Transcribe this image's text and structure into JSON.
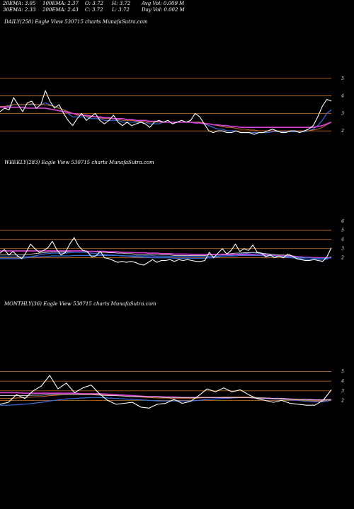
{
  "stats": {
    "ema20": "20EMA: 3.05",
    "ema30": "30EMA: 2.33",
    "ema100": "100EMA: 2.37",
    "ema200": "200EMA: 2.43",
    "open": "O: 3.72",
    "close": "C: 3.72",
    "high": "H: 3.72",
    "low": "L: 3.72",
    "avg_vol": "Avg Vol: 0.009 M",
    "day_vol": "Day Vol: 0.002  M"
  },
  "colors": {
    "background": "#000000",
    "price": "#ffffff",
    "level_line": "#b5651d",
    "ema_blue": "#3a6fe0",
    "ema_magenta": "#e040e0",
    "ema_orange": "#c87030",
    "ema_white": "#d8d8d8"
  },
  "chart_data": [
    {
      "type": "line",
      "title": "DAILY(250) Eagle   View  530715 charts MunafaSutra.com",
      "ylim": [
        1.4,
        5.6
      ],
      "yticks": [
        5,
        4,
        3,
        2
      ],
      "levels": [
        5,
        4,
        3,
        2
      ],
      "series": [
        {
          "role": "price",
          "values": [
            3.1,
            3.3,
            3.2,
            3.9,
            3.5,
            3.1,
            3.6,
            3.7,
            3.3,
            3.5,
            4.3,
            3.7,
            3.3,
            3.5,
            3.0,
            2.6,
            2.3,
            2.7,
            3.0,
            2.6,
            2.8,
            3.0,
            2.6,
            2.4,
            2.6,
            2.9,
            2.5,
            2.3,
            2.5,
            2.3,
            2.4,
            2.5,
            2.4,
            2.2,
            2.5,
            2.6,
            2.5,
            2.6,
            2.4,
            2.5,
            2.6,
            2.5,
            2.6,
            3.0,
            2.8,
            2.4,
            2.0,
            1.9,
            2.0,
            2.0,
            1.9,
            1.9,
            2.0,
            1.9,
            1.9,
            1.9,
            1.8,
            1.9,
            1.9,
            2.0,
            2.1,
            2.0,
            1.9,
            1.9,
            2.0,
            2.0,
            1.9,
            2.0,
            2.1,
            2.3,
            2.8,
            3.4,
            3.8,
            3.7
          ]
        },
        {
          "role": "ema-blue",
          "values": [
            3.4,
            3.4,
            3.4,
            3.5,
            3.5,
            3.5,
            3.5,
            3.5,
            3.5,
            3.5,
            3.6,
            3.5,
            3.4,
            3.3,
            3.2,
            3.0,
            2.8,
            2.8,
            2.8,
            2.8,
            2.7,
            2.7,
            2.7,
            2.6,
            2.6,
            2.6,
            2.6,
            2.5,
            2.5,
            2.5,
            2.5,
            2.5,
            2.5,
            2.4,
            2.4,
            2.4,
            2.5,
            2.5,
            2.5,
            2.5,
            2.5,
            2.5,
            2.5,
            2.5,
            2.5,
            2.4,
            2.3,
            2.2,
            2.1,
            2.1,
            2.0,
            2.0,
            2.0,
            1.9,
            1.9,
            1.9,
            1.9,
            1.9,
            1.9,
            1.9,
            1.95,
            1.95,
            1.95,
            1.95,
            1.95,
            1.95,
            1.95,
            1.95,
            2.0,
            2.1,
            2.3,
            2.6,
            3.0,
            3.2
          ]
        },
        {
          "role": "ema-orange",
          "values": [
            3.4,
            3.4,
            3.45,
            3.5,
            3.5,
            3.5,
            3.5,
            3.55,
            3.5,
            3.5,
            3.5,
            3.45,
            3.4,
            3.3,
            3.2,
            3.1,
            3.0,
            2.9,
            2.9,
            2.85,
            2.8,
            2.8,
            2.75,
            2.7,
            2.7,
            2.7,
            2.65,
            2.6,
            2.6,
            2.6,
            2.55,
            2.55,
            2.5,
            2.5,
            2.5,
            2.5,
            2.5,
            2.5,
            2.5,
            2.5,
            2.5,
            2.5,
            2.5,
            2.5,
            2.5,
            2.45,
            2.4,
            2.35,
            2.3,
            2.25,
            2.2,
            2.2,
            2.15,
            2.1,
            2.1,
            2.05,
            2.05,
            2.0,
            2.0,
            2.0,
            2.0,
            2.0,
            2.0,
            2.0,
            2.0,
            2.0,
            2.0,
            2.0,
            2.0,
            2.05,
            2.1,
            2.2,
            2.35,
            2.5
          ]
        },
        {
          "role": "ema-magenta",
          "values": [
            3.35,
            3.35,
            3.35,
            3.35,
            3.35,
            3.35,
            3.3,
            3.3,
            3.3,
            3.3,
            3.3,
            3.25,
            3.2,
            3.15,
            3.1,
            3.05,
            3.0,
            2.95,
            2.9,
            2.9,
            2.85,
            2.8,
            2.8,
            2.75,
            2.75,
            2.7,
            2.7,
            2.7,
            2.65,
            2.65,
            2.6,
            2.6,
            2.6,
            2.55,
            2.55,
            2.55,
            2.5,
            2.5,
            2.5,
            2.5,
            2.5,
            2.5,
            2.5,
            2.45,
            2.45,
            2.4,
            2.4,
            2.35,
            2.35,
            2.3,
            2.3,
            2.25,
            2.25,
            2.2,
            2.2,
            2.2,
            2.2,
            2.2,
            2.2,
            2.2,
            2.2,
            2.2,
            2.2,
            2.2,
            2.2,
            2.2,
            2.2,
            2.2,
            2.2,
            2.2,
            2.25,
            2.3,
            2.4,
            2.5
          ]
        }
      ]
    },
    {
      "type": "line",
      "title": "WEEKLY(283) Eagle   View  530715 charts MunafaSutra.com",
      "ylim": [
        1.2,
        6.6
      ],
      "yticks": [
        6,
        5,
        4,
        3,
        2
      ],
      "levels": [
        5,
        4,
        3,
        2
      ],
      "series": [
        {
          "role": "price",
          "values": [
            2.5,
            2.9,
            2.3,
            2.7,
            2.2,
            1.9,
            2.6,
            3.5,
            3.0,
            2.6,
            2.8,
            3.1,
            3.8,
            2.9,
            2.3,
            2.6,
            3.5,
            4.2,
            3.3,
            2.8,
            2.7,
            2.1,
            2.2,
            2.7,
            2.0,
            1.9,
            1.7,
            1.5,
            1.6,
            1.5,
            1.6,
            1.5,
            1.3,
            1.2,
            1.5,
            1.8,
            1.5,
            1.7,
            1.7,
            1.8,
            1.6,
            1.8,
            1.7,
            1.8,
            1.7,
            1.6,
            1.6,
            1.7,
            2.6,
            2.0,
            2.5,
            3.0,
            2.4,
            2.8,
            3.5,
            2.7,
            3.0,
            2.8,
            3.4,
            2.6,
            2.5,
            2.1,
            2.3,
            2.0,
            2.2,
            2.0,
            2.4,
            2.2,
            1.9,
            1.8,
            1.7,
            1.7,
            1.8,
            1.7,
            1.6,
            2.1,
            3.1
          ]
        },
        {
          "role": "ema-blue",
          "values": [
            1.9,
            1.9,
            1.9,
            1.9,
            1.9,
            1.95,
            2.0,
            2.1,
            2.2,
            2.3,
            2.4,
            2.45,
            2.5,
            2.5,
            2.5,
            2.5,
            2.55,
            2.6,
            2.6,
            2.6,
            2.55,
            2.5,
            2.45,
            2.4,
            2.35,
            2.3,
            2.3,
            2.25,
            2.2,
            2.2,
            2.15,
            2.1,
            2.1,
            2.05,
            2.05,
            2.0,
            2.0,
            2.0,
            2.0,
            2.0,
            1.95,
            1.95,
            1.95,
            1.95,
            1.95,
            1.95,
            1.95,
            1.95,
            2.0,
            2.0,
            2.1,
            2.2,
            2.2,
            2.25,
            2.35,
            2.4,
            2.45,
            2.5,
            2.55,
            2.5,
            2.45,
            2.35,
            2.3,
            2.2,
            2.15,
            2.1,
            2.05,
            2.0,
            1.95,
            1.9,
            1.85,
            1.8,
            1.8,
            1.8,
            1.75,
            1.85,
            2.1
          ]
        },
        {
          "role": "ema-white",
          "values": [
            2.3,
            2.3,
            2.3,
            2.3,
            2.3,
            2.3,
            2.35,
            2.4,
            2.45,
            2.5,
            2.55,
            2.6,
            2.65,
            2.65,
            2.65,
            2.65,
            2.7,
            2.75,
            2.75,
            2.75,
            2.7,
            2.7,
            2.65,
            2.6,
            2.6,
            2.55,
            2.55,
            2.5,
            2.5,
            2.45,
            2.45,
            2.4,
            2.4,
            2.35,
            2.35,
            2.3,
            2.3,
            2.3,
            2.3,
            2.3,
            2.25,
            2.25,
            2.25,
            2.25,
            2.25,
            2.25,
            2.25,
            2.25,
            2.3,
            2.3,
            2.35,
            2.4,
            2.4,
            2.45,
            2.5,
            2.5,
            2.55,
            2.55,
            2.6,
            2.55,
            2.5,
            2.45,
            2.4,
            2.35,
            2.3,
            2.3,
            2.25,
            2.2,
            2.15,
            2.1,
            2.05,
            2.0,
            2.0,
            2.0,
            1.95,
            2.0,
            2.1
          ]
        },
        {
          "role": "ema-magenta",
          "values": [
            2.75,
            2.75,
            2.75,
            2.75,
            2.75,
            2.75,
            2.75,
            2.75,
            2.75,
            2.75,
            2.75,
            2.75,
            2.75,
            2.75,
            2.75,
            2.75,
            2.75,
            2.75,
            2.75,
            2.75,
            2.7,
            2.7,
            2.7,
            2.7,
            2.7,
            2.65,
            2.65,
            2.65,
            2.6,
            2.6,
            2.6,
            2.55,
            2.55,
            2.55,
            2.5,
            2.5,
            2.5,
            2.45,
            2.45,
            2.45,
            2.4,
            2.4,
            2.4,
            2.4,
            2.35,
            2.35,
            2.35,
            2.35,
            2.35,
            2.35,
            2.35,
            2.35,
            2.35,
            2.35,
            2.35,
            2.35,
            2.35,
            2.35,
            2.35,
            2.3,
            2.3,
            2.3,
            2.25,
            2.25,
            2.2,
            2.2,
            2.15,
            2.15,
            2.1,
            2.1,
            2.05,
            2.05,
            2.0,
            2.0,
            2.0,
            2.0,
            2.0
          ]
        },
        {
          "role": "ema-blue",
          "values": [
            2.1,
            2.1,
            2.1,
            2.1,
            2.1,
            2.1,
            2.1,
            2.1,
            2.1,
            2.1,
            2.15,
            2.15,
            2.2,
            2.2,
            2.2,
            2.2,
            2.2,
            2.25,
            2.25,
            2.25,
            2.25,
            2.25,
            2.25,
            2.25,
            2.25,
            2.25,
            2.25,
            2.25,
            2.25,
            2.2,
            2.2,
            2.2,
            2.2,
            2.2,
            2.2,
            2.2,
            2.15,
            2.15,
            2.15,
            2.15,
            2.15,
            2.15,
            2.15,
            2.15,
            2.15,
            2.15,
            2.15,
            2.15,
            2.15,
            2.15,
            2.2,
            2.2,
            2.2,
            2.2,
            2.2,
            2.25,
            2.25,
            2.25,
            2.25,
            2.25,
            2.25,
            2.2,
            2.2,
            2.2,
            2.15,
            2.15,
            2.1,
            2.1,
            2.05,
            2.05,
            2.0,
            2.0,
            1.95,
            1.95,
            1.95,
            1.95,
            2.0
          ]
        }
      ]
    },
    {
      "type": "line",
      "title": "MONTHLY(36) Eagle   View  530715 charts MunafaSutra.com",
      "ylim": [
        1.0,
        6.0
      ],
      "yticks": [
        5,
        4,
        3,
        2
      ],
      "levels": [
        5,
        4,
        3,
        2
      ],
      "series": [
        {
          "role": "price",
          "values": [
            1.6,
            1.8,
            2.6,
            2.2,
            3.0,
            3.5,
            4.6,
            3.2,
            3.8,
            2.8,
            3.3,
            3.6,
            2.7,
            2.0,
            1.6,
            1.7,
            1.8,
            1.3,
            1.2,
            1.6,
            1.7,
            2.1,
            1.7,
            1.9,
            2.5,
            3.2,
            2.9,
            3.3,
            2.9,
            3.1,
            2.6,
            2.2,
            2.0,
            1.8,
            2.0,
            1.7,
            1.6,
            1.5,
            1.5,
            2.0,
            3.1
          ]
        },
        {
          "role": "ema-blue",
          "values": [
            1.5,
            1.5,
            1.55,
            1.6,
            1.7,
            1.8,
            1.95,
            2.05,
            2.15,
            2.2,
            2.25,
            2.3,
            2.3,
            2.25,
            2.2,
            2.15,
            2.1,
            2.05,
            2.0,
            1.95,
            1.95,
            1.95,
            1.95,
            1.95,
            2.0,
            2.1,
            2.15,
            2.2,
            2.25,
            2.3,
            2.3,
            2.25,
            2.2,
            2.15,
            2.1,
            2.05,
            2.0,
            1.9,
            1.85,
            1.85,
            2.0
          ]
        },
        {
          "role": "ema-magenta",
          "values": [
            2.8,
            2.8,
            2.8,
            2.75,
            2.75,
            2.75,
            2.75,
            2.75,
            2.75,
            2.75,
            2.7,
            2.7,
            2.7,
            2.65,
            2.6,
            2.55,
            2.5,
            2.45,
            2.4,
            2.4,
            2.35,
            2.35,
            2.3,
            2.3,
            2.3,
            2.3,
            2.3,
            2.3,
            2.3,
            2.3,
            2.3,
            2.25,
            2.25,
            2.2,
            2.2,
            2.15,
            2.1,
            2.1,
            2.05,
            2.05,
            2.05
          ]
        },
        {
          "role": "ema-orange",
          "values": [
            2.2,
            2.2,
            2.25,
            2.3,
            2.35,
            2.4,
            2.5,
            2.55,
            2.6,
            2.6,
            2.65,
            2.65,
            2.6,
            2.55,
            2.5,
            2.45,
            2.4,
            2.35,
            2.3,
            2.25,
            2.25,
            2.2,
            2.2,
            2.2,
            2.25,
            2.3,
            2.3,
            2.35,
            2.35,
            2.35,
            2.35,
            2.3,
            2.25,
            2.2,
            2.15,
            2.1,
            2.05,
            2.0,
            1.95,
            1.95,
            2.05
          ]
        },
        {
          "role": "ema-white",
          "values": [
            2.5,
            2.5,
            2.5,
            2.5,
            2.55,
            2.55,
            2.6,
            2.6,
            2.6,
            2.6,
            2.6,
            2.6,
            2.55,
            2.5,
            2.5,
            2.45,
            2.4,
            2.4,
            2.35,
            2.35,
            2.3,
            2.3,
            2.3,
            2.3,
            2.3,
            2.3,
            2.3,
            2.3,
            2.3,
            2.3,
            2.3,
            2.25,
            2.25,
            2.2,
            2.2,
            2.15,
            2.1,
            2.1,
            2.05,
            2.05,
            2.1
          ]
        }
      ]
    }
  ]
}
